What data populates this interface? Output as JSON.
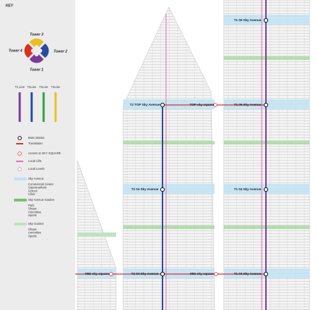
{
  "key": {
    "title": "KEY",
    "towers": [
      "Tower 3",
      "Tower 4",
      "Tower 2",
      "Tower 1"
    ],
    "lines": [
      "T1 Line",
      "T2Line",
      "T3Line",
      "T4Line"
    ],
    "legend": [
      "Main Station",
      "Translation",
      "Access to SKY SQUARE",
      "Local Lifts",
      "Local Levels",
      "Sky Avenue",
      "Sky Avenue Garden",
      "Sky Garden"
    ],
    "notes": [
      [
        "Commercial Center",
        "Supermarkets",
        "School",
        "Clinic"
      ],
      [
        "Park",
        "Shops",
        "Amenities",
        "Sports"
      ],
      [
        "Shops",
        "Amenities",
        "Sports"
      ]
    ]
  },
  "labels": [
    "T1 06 Sky Avenue",
    "T2 TOP Sky Avenue",
    "TOP sky square",
    "T1 05 Sky Avenue",
    "T2 04 Sky Avenue",
    "T1 04 Sky Avenue",
    "T3 TOP Sky Avenue",
    "MID sky square",
    "T2 03 Sky Avenue",
    "MID sky square",
    "T1 03 Sky Avenue"
  ]
}
